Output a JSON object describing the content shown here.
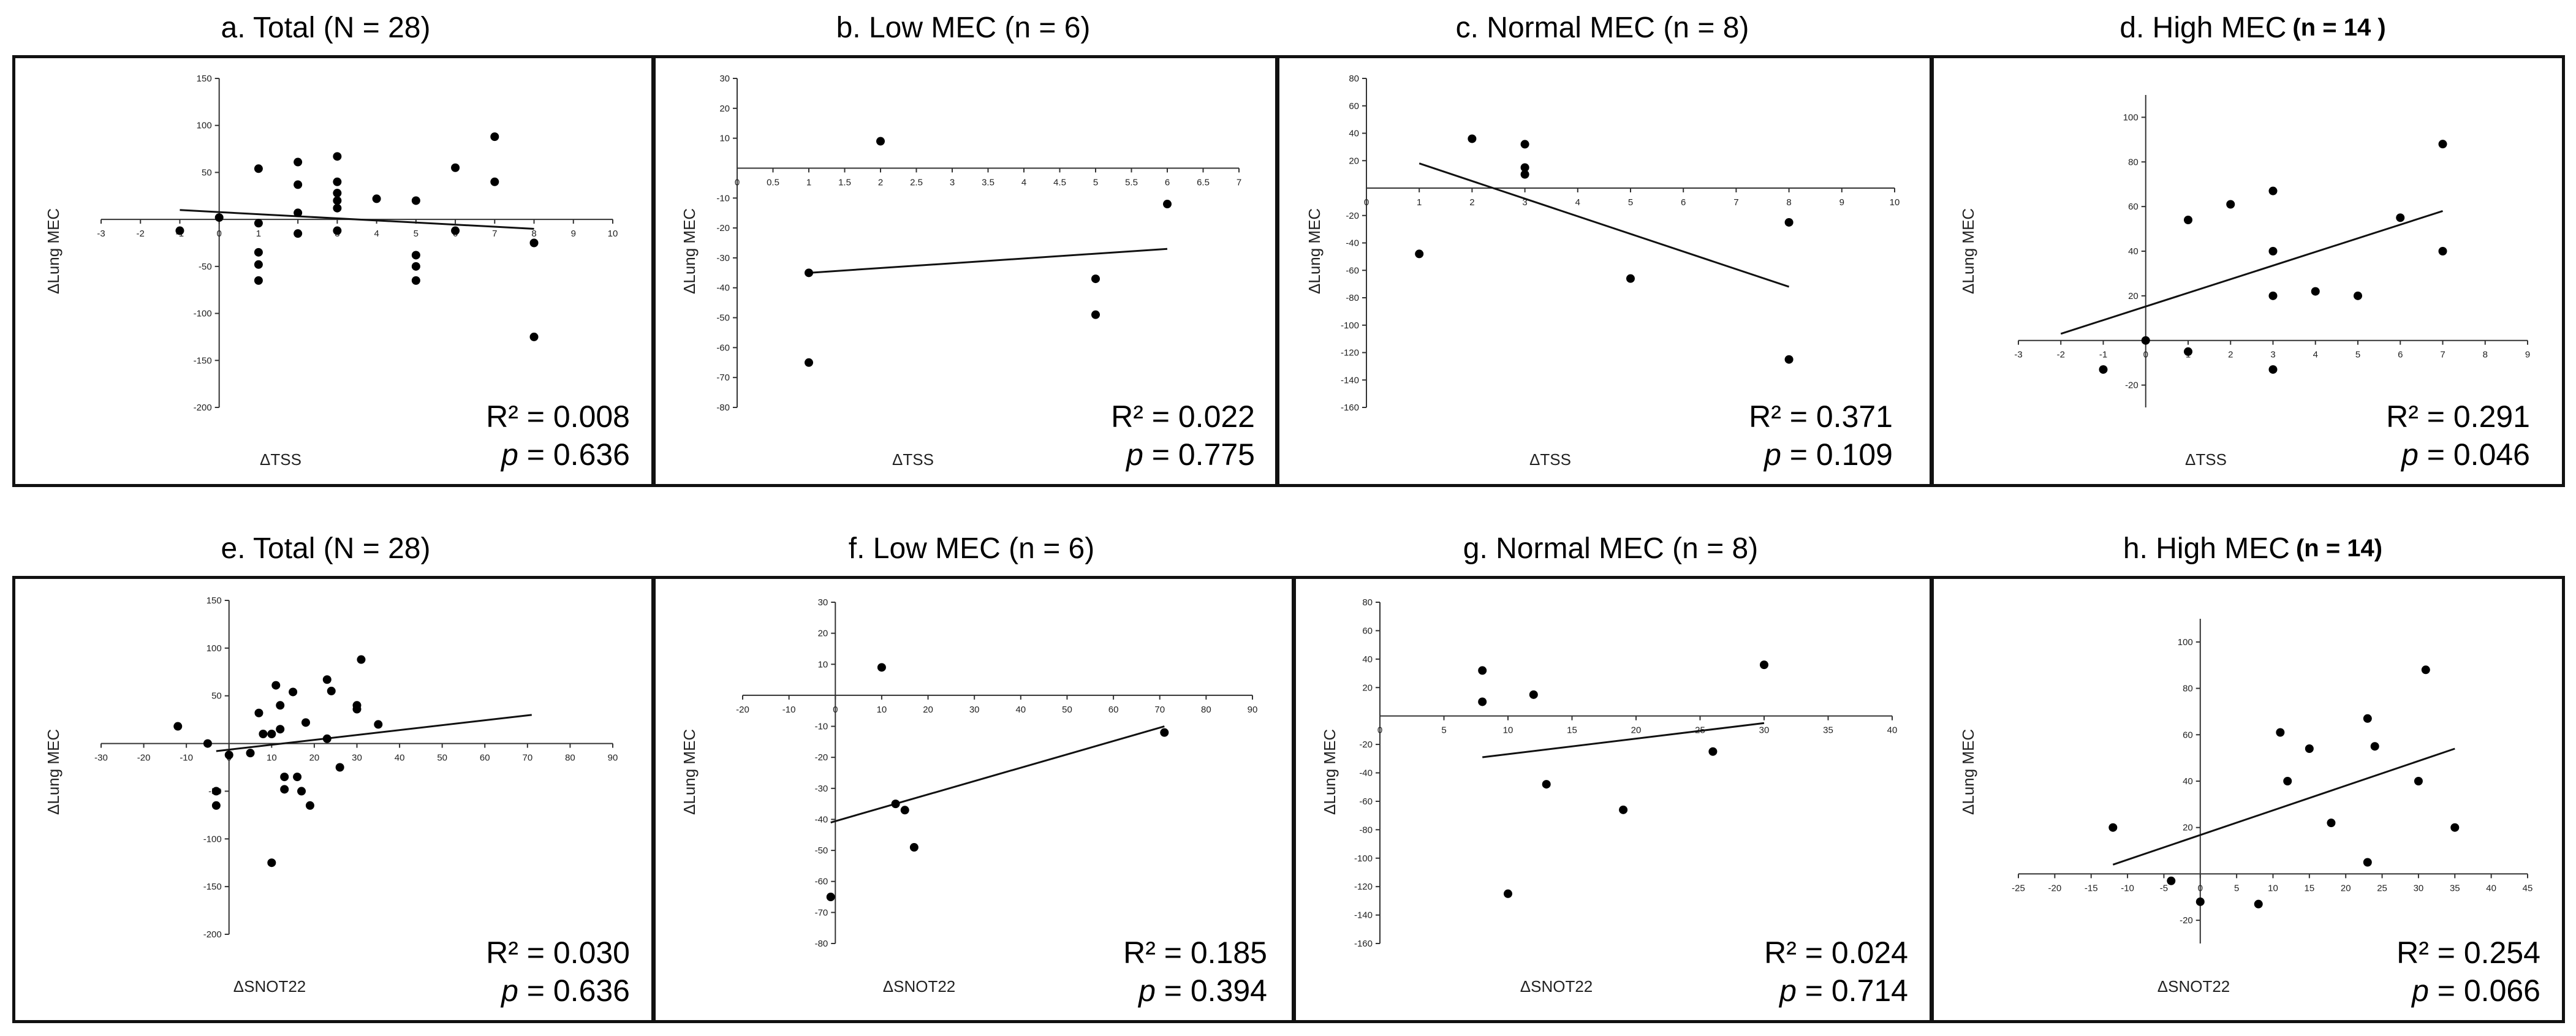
{
  "chart_data": [
    {
      "type": "scatter",
      "title": "a. Total",
      "n_label": "(N = 28)",
      "xlabel": "ΔTSS",
      "ylabel": "ΔLung MEC",
      "xlim": [
        -3,
        10
      ],
      "ylim": [
        -200,
        150
      ],
      "xticks": [
        -3,
        -2,
        -1,
        0,
        1,
        2,
        3,
        4,
        5,
        6,
        7,
        8,
        9,
        10
      ],
      "yticks": [
        -200,
        -150,
        -100,
        -50,
        50,
        100,
        150
      ],
      "points": [
        [
          -1,
          -12
        ],
        [
          0,
          2
        ],
        [
          1,
          54
        ],
        [
          1,
          -4
        ],
        [
          1,
          -35
        ],
        [
          1,
          -48
        ],
        [
          1,
          -65
        ],
        [
          2,
          61
        ],
        [
          2,
          37
        ],
        [
          2,
          7
        ],
        [
          2,
          -15
        ],
        [
          3,
          67
        ],
        [
          3,
          40
        ],
        [
          3,
          28
        ],
        [
          3,
          20
        ],
        [
          3,
          12
        ],
        [
          3,
          -12
        ],
        [
          4,
          22
        ],
        [
          5,
          20
        ],
        [
          5,
          -38
        ],
        [
          5,
          -50
        ],
        [
          5,
          -65
        ],
        [
          6,
          55
        ],
        [
          7,
          88
        ],
        [
          7,
          40
        ],
        [
          6,
          -12
        ],
        [
          8,
          -25
        ],
        [
          8,
          -125
        ]
      ],
      "fit": [
        [
          -1,
          10
        ],
        [
          8,
          -10
        ]
      ],
      "r2": "R² = 0.008",
      "p_label": "p",
      "p_value": "= 0.636",
      "grid": false
    },
    {
      "type": "scatter",
      "title": "b. Low MEC",
      "n_label": "(n = 6)",
      "xlabel": "ΔTSS",
      "ylabel": "ΔLung MEC",
      "xlim": [
        0,
        7
      ],
      "ylim": [
        -80,
        30
      ],
      "xticks": [
        0,
        0.5,
        1,
        1.5,
        2,
        2.5,
        3,
        3.5,
        4,
        4.5,
        5,
        5.5,
        6,
        6.5,
        7
      ],
      "yticks": [
        -80,
        -70,
        -60,
        -50,
        -40,
        -30,
        -20,
        -10,
        10,
        20,
        30
      ],
      "points": [
        [
          1,
          -35
        ],
        [
          1,
          -65
        ],
        [
          2,
          9
        ],
        [
          5,
          -37
        ],
        [
          5,
          -49
        ],
        [
          6,
          -12
        ]
      ],
      "fit": [
        [
          1,
          -35
        ],
        [
          6,
          -27
        ]
      ],
      "r2": "R² = 0.022",
      "p_label": "p",
      "p_value": "= 0.775",
      "grid": false
    },
    {
      "type": "scatter",
      "title": "c. Normal MEC",
      "n_label": "(n = 8)",
      "xlabel": "ΔTSS",
      "ylabel": "ΔLung MEC",
      "xlim": [
        0,
        10
      ],
      "ylim": [
        -160,
        80
      ],
      "xticks": [
        0,
        1,
        2,
        3,
        4,
        5,
        6,
        7,
        8,
        9,
        10
      ],
      "yticks": [
        -160,
        -140,
        -120,
        -100,
        -80,
        -60,
        -40,
        -20,
        20,
        40,
        60,
        80
      ],
      "points": [
        [
          1,
          -48
        ],
        [
          2,
          36
        ],
        [
          3,
          32
        ],
        [
          3,
          15
        ],
        [
          3,
          10
        ],
        [
          5,
          -66
        ],
        [
          8,
          -25
        ],
        [
          8,
          -125
        ]
      ],
      "fit": [
        [
          1,
          18
        ],
        [
          8,
          -72
        ]
      ],
      "r2": "R² = 0.371",
      "p_label": "p",
      "p_value": "= 0.109",
      "grid": false
    },
    {
      "type": "scatter",
      "title": "d. High MEC",
      "n_label": "(n = 14 )",
      "xlabel": "ΔTSS",
      "ylabel": "ΔLung MEC",
      "xlim": [
        -3,
        9
      ],
      "ylim": [
        -30,
        110
      ],
      "xticks": [
        -3,
        -2,
        -1,
        0,
        1,
        2,
        3,
        4,
        5,
        6,
        7,
        8,
        9
      ],
      "yticks": [
        -20,
        20,
        40,
        60,
        80,
        100
      ],
      "points": [
        [
          -1,
          -13
        ],
        [
          0,
          0
        ],
        [
          1,
          54
        ],
        [
          1,
          -5
        ],
        [
          2,
          61
        ],
        [
          3,
          67
        ],
        [
          3,
          40
        ],
        [
          3,
          20
        ],
        [
          3,
          -13
        ],
        [
          4,
          22
        ],
        [
          5,
          20
        ],
        [
          6,
          55
        ],
        [
          7,
          88
        ],
        [
          7,
          40
        ]
      ],
      "fit": [
        [
          -2,
          3
        ],
        [
          7,
          58
        ]
      ],
      "r2": "R² = 0.291",
      "p_label": "p",
      "p_value": "= 0.046",
      "grid": false
    },
    {
      "type": "scatter",
      "title": "e. Total",
      "n_label": "(N = 28)",
      "xlabel": "ΔSNOT22",
      "ylabel": "ΔLung MEC",
      "xlim": [
        -30,
        90
      ],
      "ylim": [
        -200,
        150
      ],
      "xticks": [
        -30,
        -20,
        -10,
        0,
        10,
        20,
        30,
        40,
        50,
        60,
        70,
        80,
        90
      ],
      "yticks": [
        -200,
        -150,
        -100,
        -50,
        50,
        100,
        150
      ],
      "points": [
        [
          -12,
          18
        ],
        [
          -5,
          0
        ],
        [
          -3,
          -50
        ],
        [
          -3,
          -65
        ],
        [
          0,
          -12
        ],
        [
          5,
          -10
        ],
        [
          7,
          32
        ],
        [
          8,
          10
        ],
        [
          10,
          10
        ],
        [
          10,
          -125
        ],
        [
          11,
          61
        ],
        [
          12,
          40
        ],
        [
          12,
          15
        ],
        [
          13,
          -48
        ],
        [
          13,
          -35
        ],
        [
          15,
          54
        ],
        [
          16,
          -35
        ],
        [
          17,
          -50
        ],
        [
          18,
          22
        ],
        [
          19,
          -65
        ],
        [
          23,
          67
        ],
        [
          23,
          5
        ],
        [
          24,
          55
        ],
        [
          26,
          -25
        ],
        [
          30,
          40
        ],
        [
          30,
          36
        ],
        [
          31,
          88
        ],
        [
          35,
          20
        ]
      ],
      "fit": [
        [
          -3,
          -8
        ],
        [
          71,
          30
        ]
      ],
      "r2": "R² = 0.030",
      "p_label": "p",
      "p_value": "= 0.636",
      "grid": false
    },
    {
      "type": "scatter",
      "title": "f. Low MEC",
      "n_label": "(n = 6)",
      "xlabel": "ΔSNOT22",
      "ylabel": "ΔLung MEC",
      "xlim": [
        -20,
        90
      ],
      "ylim": [
        -80,
        30
      ],
      "xticks": [
        -20,
        -10,
        0,
        10,
        20,
        30,
        40,
        50,
        60,
        70,
        80,
        90
      ],
      "yticks": [
        -80,
        -70,
        -60,
        -50,
        -40,
        -30,
        -20,
        -10,
        10,
        20,
        30
      ],
      "points": [
        [
          -1,
          -65
        ],
        [
          10,
          9
        ],
        [
          13,
          -35
        ],
        [
          15,
          -37
        ],
        [
          17,
          -49
        ],
        [
          71,
          -12
        ]
      ],
      "fit": [
        [
          -1,
          -41
        ],
        [
          71,
          -10
        ]
      ],
      "r2": "R² = 0.185",
      "p_label": "p",
      "p_value": "= 0.394",
      "grid": false
    },
    {
      "type": "scatter",
      "title": "g. Normal MEC",
      "n_label": "(n = 8)",
      "xlabel": "ΔSNOT22",
      "ylabel": "ΔLung MEC",
      "xlim": [
        0,
        40
      ],
      "ylim": [
        -160,
        80
      ],
      "xticks": [
        0,
        5,
        10,
        15,
        20,
        25,
        30,
        35,
        40
      ],
      "yticks": [
        -160,
        -140,
        -120,
        -100,
        -80,
        -60,
        -40,
        -20,
        20,
        40,
        60,
        80
      ],
      "points": [
        [
          8,
          32
        ],
        [
          8,
          10
        ],
        [
          10,
          -125
        ],
        [
          12,
          15
        ],
        [
          13,
          -48
        ],
        [
          19,
          -66
        ],
        [
          26,
          -25
        ],
        [
          30,
          36
        ]
      ],
      "fit": [
        [
          8,
          -29
        ],
        [
          30,
          -5
        ]
      ],
      "r2": "R² = 0.024",
      "p_label": "p",
      "p_value": "= 0.714",
      "grid": false
    },
    {
      "type": "scatter",
      "title": "h. High MEC",
      "n_label": "(n = 14)",
      "xlabel": "ΔSNOT22",
      "ylabel": "ΔLung MEC",
      "xlim": [
        -25,
        45
      ],
      "ylim": [
        -30,
        110
      ],
      "xticks": [
        -25,
        -20,
        -15,
        -10,
        -5,
        0,
        5,
        10,
        15,
        20,
        25,
        30,
        35,
        40,
        45
      ],
      "yticks": [
        -20,
        20,
        40,
        60,
        80,
        100
      ],
      "points": [
        [
          -12,
          20
        ],
        [
          -4,
          -3
        ],
        [
          0,
          -12
        ],
        [
          8,
          -13
        ],
        [
          11,
          61
        ],
        [
          12,
          40
        ],
        [
          15,
          54
        ],
        [
          18,
          22
        ],
        [
          23,
          67
        ],
        [
          23,
          5
        ],
        [
          24,
          55
        ],
        [
          30,
          40
        ],
        [
          31,
          88
        ],
        [
          35,
          20
        ]
      ],
      "fit": [
        [
          -12,
          4
        ],
        [
          35,
          54
        ]
      ],
      "r2": "R² = 0.254",
      "p_label": "p",
      "p_value": "= 0.066",
      "grid": false
    }
  ]
}
